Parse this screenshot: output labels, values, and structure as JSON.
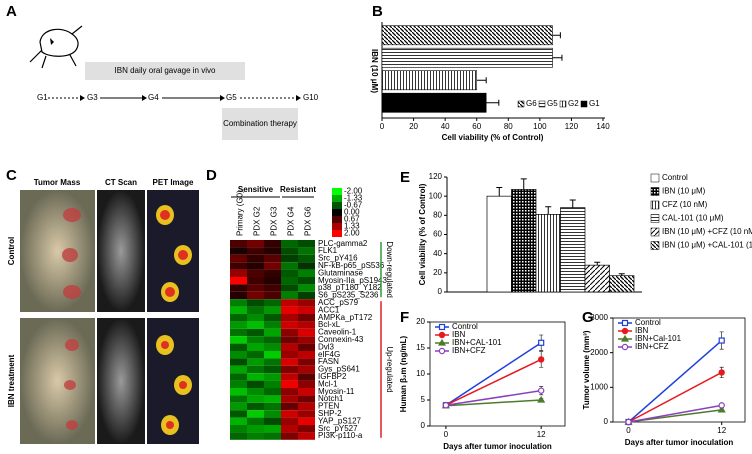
{
  "panel_labels": [
    "A",
    "B",
    "C",
    "D",
    "E",
    "F",
    "G"
  ],
  "diagram": {
    "nodes": [
      "G1",
      "G3",
      "G4",
      "G5",
      "G10"
    ],
    "treatment": "IBN daily oral gavage in vivo",
    "combination": "Combination therapy"
  },
  "photos": {
    "columns": [
      "Tumor Mass",
      "CT Scan",
      "PET Image"
    ],
    "rows": [
      "Control",
      "IBN treatment"
    ]
  },
  "chart_data": [
    {
      "type": "bar",
      "orientation": "horizontal",
      "ylabel": "IBN (10 μM)",
      "xlabel": "Cell viability (% of Control)",
      "categories": [
        "G6",
        "G5",
        "G2",
        "G1"
      ],
      "values": [
        108,
        108,
        60,
        66
      ],
      "errors": [
        5,
        6,
        6,
        8
      ],
      "xlim": [
        0,
        140
      ],
      "xticks": [
        0,
        20,
        40,
        60,
        80,
        100,
        120,
        140
      ],
      "legend": "lower right"
    },
    {
      "type": "heatmap",
      "group_names": [
        "Sensitive",
        "Resistant"
      ],
      "column_groups": [
        [
          "Primary (G0)",
          "PDX G2",
          "PDX G3"
        ],
        [
          "PDX G4",
          "PDX G6"
        ]
      ],
      "row_groups": [
        {
          "name": "Down-regulated",
          "color": "#2e9e3a",
          "rows": [
            "PLC-gamma2",
            "FLK1",
            "Src_pY416",
            "NF-kB-p65_pS536",
            "Glutaminase",
            "Myosin-IIa_pS1943",
            "p38_pT180_Y182",
            "S6_pS235_S236"
          ]
        },
        {
          "name": "Up-regulated",
          "color": "#e02020",
          "rows": [
            "ACC_pS79",
            "ACC1",
            "AMPKa_pT172",
            "Bcl-xL",
            "Caveolin-1",
            "Connexin-43",
            "Dvl3",
            "eIF4G",
            "FASN",
            "Gys_pS641",
            "IGFBP2",
            "Mcl-1",
            "Myosin-11",
            "Notch1",
            "PTEN",
            "SHP-2",
            "YAP_pS127",
            "Src_pY527",
            "PI3K-p110-a"
          ]
        }
      ],
      "values": [
        [
          0.6,
          0.9,
          0.4,
          -0.8,
          -0.6
        ],
        [
          0.2,
          0.5,
          0.3,
          -0.6,
          -0.9
        ],
        [
          0.8,
          0.4,
          0.7,
          -0.5,
          -0.7
        ],
        [
          0.5,
          0.3,
          0.9,
          -0.9,
          -0.4
        ],
        [
          1.2,
          0.6,
          0.4,
          -0.7,
          -1.0
        ],
        [
          2.0,
          0.5,
          0.3,
          -0.8,
          -0.6
        ],
        [
          0.4,
          0.7,
          0.5,
          -0.6,
          -1.1
        ],
        [
          0.3,
          0.9,
          0.6,
          -1.0,
          -0.5
        ],
        [
          -1.0,
          -0.6,
          -0.8,
          1.5,
          1.2
        ],
        [
          -1.4,
          -0.9,
          -1.2,
          1.8,
          1.6
        ],
        [
          -0.8,
          -1.1,
          -0.7,
          1.3,
          0.9
        ],
        [
          -1.2,
          -1.5,
          -1.0,
          1.6,
          1.4
        ],
        [
          -0.9,
          -0.7,
          -1.3,
          1.1,
          1.7
        ],
        [
          -1.6,
          -1.0,
          -0.8,
          0.9,
          1.2
        ],
        [
          -0.7,
          -1.3,
          -1.1,
          1.4,
          0.8
        ],
        [
          -1.1,
          -0.8,
          -1.6,
          1.2,
          1.5
        ],
        [
          -0.6,
          -1.2,
          -0.9,
          1.7,
          1.0
        ],
        [
          -1.3,
          -0.9,
          -0.7,
          1.0,
          1.3
        ],
        [
          -0.8,
          -1.4,
          -1.2,
          1.5,
          0.7
        ],
        [
          -1.0,
          -0.6,
          -1.0,
          1.9,
          1.1
        ],
        [
          -1.5,
          -1.1,
          -0.8,
          1.1,
          1.6
        ],
        [
          -0.9,
          -1.3,
          -1.4,
          1.3,
          0.9
        ],
        [
          -1.2,
          -0.7,
          -0.9,
          0.8,
          1.4
        ],
        [
          -0.7,
          -1.6,
          -1.1,
          1.6,
          1.2
        ],
        [
          -1.4,
          -0.9,
          -0.6,
          1.2,
          1.8
        ],
        [
          -1.0,
          -1.2,
          -1.3,
          1.4,
          1.0
        ],
        [
          -0.8,
          -1.0,
          -0.9,
          1.0,
          1.5
        ]
      ],
      "zlim": [
        -2,
        2
      ],
      "colors": {
        "low": "#00ff00",
        "mid": "#000000",
        "high": "#ff0000"
      },
      "colorbar_ticks": [
        {
          "value": -2,
          "label": "-2.00"
        },
        {
          "value": -1.33,
          "label": "-1.33"
        },
        {
          "value": -0.67,
          "label": "-0.67"
        },
        {
          "value": 0,
          "label": "0.00"
        },
        {
          "value": 0.67,
          "label": "0.67"
        },
        {
          "value": 1.33,
          "label": "1.33"
        },
        {
          "value": 2,
          "label": "2.00"
        }
      ]
    },
    {
      "type": "bar",
      "ylabel": "Cell viability (% of Control)",
      "categories": [
        "Control",
        "IBN (10 μM)",
        "CFZ (10 nM)",
        "CAL-101 (10 μM)",
        "IBN (10 μM) +CFZ (10 nM)",
        "IBN (10 μM) +CAL-101 (10 μM)"
      ],
      "values": [
        100,
        107,
        81,
        88,
        28,
        17
      ],
      "errors": [
        9,
        11,
        8,
        8,
        3,
        2
      ],
      "ylim": [
        0,
        120
      ],
      "yticks": [
        0,
        20,
        40,
        60,
        80,
        100,
        120
      ],
      "legend": "right"
    },
    {
      "type": "line",
      "xlabel": "Days after tumor inoculation",
      "ylabel": "Human β₂m (ng/mL)",
      "xlim": [
        -2,
        15
      ],
      "xticks": [
        0,
        12
      ],
      "ylim": [
        0,
        20
      ],
      "yticks": [
        0,
        5,
        10,
        15,
        20
      ],
      "legend": "upper left",
      "series": [
        {
          "name": "Control",
          "color": "#1f3fdd",
          "x": [
            0,
            12
          ],
          "values": [
            4,
            16
          ],
          "errors": [
            0.3,
            1.5
          ]
        },
        {
          "name": "IBN",
          "color": "#e8191e",
          "x": [
            0,
            12
          ],
          "values": [
            4,
            12.8
          ],
          "errors": [
            0.3,
            1.5
          ]
        },
        {
          "name": "IBN+CAL-101",
          "color": "#4e7a2a",
          "x": [
            0,
            12
          ],
          "values": [
            3.9,
            5
          ],
          "errors": [
            0.3,
            0.3
          ]
        },
        {
          "name": "IBN+CFZ",
          "color": "#8a3fc0",
          "x": [
            0,
            12
          ],
          "values": [
            4,
            6.8
          ],
          "errors": [
            0.3,
            0.8
          ]
        }
      ]
    },
    {
      "type": "line",
      "xlabel": "Days after tumor inoculation",
      "ylabel": "Tumor volume (mm³)",
      "xlim": [
        -2,
        15
      ],
      "xticks": [
        0,
        12
      ],
      "ylim": [
        0,
        3000
      ],
      "yticks": [
        0,
        1000,
        2000,
        3000
      ],
      "legend": "upper left",
      "series": [
        {
          "name": "Control",
          "color": "#1f3fdd",
          "x": [
            0,
            12
          ],
          "values": [
            0,
            2350
          ],
          "errors": [
            20,
            250
          ]
        },
        {
          "name": "IBN",
          "color": "#e8191e",
          "x": [
            0,
            12
          ],
          "values": [
            0,
            1430
          ],
          "errors": [
            20,
            150
          ]
        },
        {
          "name": "IBN+Cal-101",
          "color": "#4e7a2a",
          "x": [
            0,
            12
          ],
          "values": [
            0,
            350
          ],
          "errors": [
            20,
            50
          ]
        },
        {
          "name": "IBN+CFZ",
          "color": "#8a3fc0",
          "x": [
            0,
            12
          ],
          "values": [
            0,
            480
          ],
          "errors": [
            20,
            50
          ]
        }
      ]
    }
  ]
}
